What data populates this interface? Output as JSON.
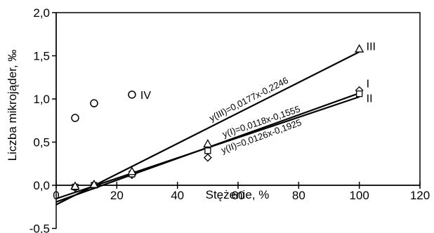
{
  "chart_data": {
    "type": "scatter",
    "title": "",
    "xlabel": "Stężenie, %",
    "ylabel": "Liczba mikrojąder, ‰",
    "xlim": [
      0,
      120
    ],
    "ylim": [
      -0.5,
      2.0
    ],
    "xticks": [
      0,
      20,
      40,
      60,
      80,
      100,
      120
    ],
    "yticks": [
      -0.5,
      0.0,
      0.5,
      1.0,
      1.5,
      2.0
    ],
    "xtick_labels": [
      "0",
      "20",
      "40",
      "60",
      "80",
      "100",
      "120"
    ],
    "ytick_labels": [
      "-0,5",
      "0,0",
      "0,5",
      "1,0",
      "1,5",
      "2,0"
    ],
    "grid": false,
    "series": [
      {
        "name": "I",
        "marker": "diamond",
        "points": [
          {
            "x": 6.25,
            "y": -0.03
          },
          {
            "x": 12.5,
            "y": 0.0
          },
          {
            "x": 25,
            "y": 0.12
          },
          {
            "x": 50,
            "y": 0.32
          },
          {
            "x": 100,
            "y": 1.1
          }
        ],
        "trend": {
          "slope": 0.0118,
          "intercept": -0.1555,
          "label": "y(I)=0,0118x-0,1555"
        }
      },
      {
        "name": "II",
        "marker": "square",
        "points": [
          {
            "x": 6.25,
            "y": -0.02
          },
          {
            "x": 12.5,
            "y": 0.0
          },
          {
            "x": 25,
            "y": 0.13
          },
          {
            "x": 50,
            "y": 0.4
          },
          {
            "x": 100,
            "y": 1.06
          }
        ],
        "trend": {
          "slope": 0.0126,
          "intercept": -0.1925,
          "label": "y(II)=0,0126x-0,1925"
        }
      },
      {
        "name": "III",
        "marker": "triangle",
        "points": [
          {
            "x": 6.25,
            "y": -0.01
          },
          {
            "x": 12.5,
            "y": 0.01
          },
          {
            "x": 25,
            "y": 0.16
          },
          {
            "x": 50,
            "y": 0.48
          },
          {
            "x": 100,
            "y": 1.58
          }
        ],
        "trend": {
          "slope": 0.0177,
          "intercept": -0.2246,
          "label": "y(III)=0,0177x-0,2246"
        }
      },
      {
        "name": "IV",
        "marker": "circle",
        "points": [
          {
            "x": 6.25,
            "y": 0.78
          },
          {
            "x": 12.5,
            "y": 0.95
          },
          {
            "x": 25,
            "y": 1.05
          }
        ]
      }
    ]
  }
}
